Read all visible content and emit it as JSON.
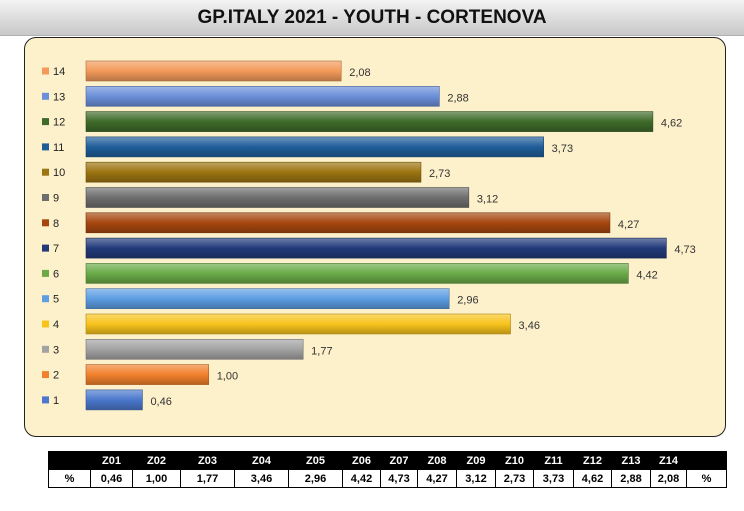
{
  "title": "GP.ITALY 2021 - YOUTH - CORTENOVA",
  "chart_data": {
    "type": "bar",
    "orientation": "horizontal",
    "title": "GP.ITALY 2021 - YOUTH - CORTENOVA",
    "categories": [
      "14",
      "13",
      "12",
      "11",
      "10",
      "9",
      "8",
      "7",
      "6",
      "5",
      "4",
      "3",
      "2",
      "1"
    ],
    "values": [
      2.08,
      2.88,
      4.62,
      3.73,
      2.73,
      3.12,
      4.27,
      4.73,
      4.42,
      2.96,
      3.46,
      1.77,
      1.0,
      0.46
    ],
    "value_labels": [
      "2,08",
      "2,88",
      "4,62",
      "3,73",
      "2,73",
      "3,12",
      "4,27",
      "4,73",
      "4,42",
      "2,96",
      "3,46",
      "1,77",
      "1,00",
      "0,46"
    ],
    "colors": [
      "#f39a5a",
      "#6b8fd9",
      "#3e6b2a",
      "#1f5d99",
      "#9c7411",
      "#6e6e6e",
      "#a6460f",
      "#223a7a",
      "#6aab48",
      "#5d9de2",
      "#f7c31c",
      "#a3a3a3",
      "#f2812d",
      "#4a78cc"
    ],
    "xlim": [
      0,
      5
    ],
    "grid": false,
    "legend": "left"
  },
  "table": {
    "headers": [
      "",
      "Z01",
      "Z02",
      "Z03",
      "Z04",
      "Z05",
      "Z06",
      "Z07",
      "Z08",
      "Z09",
      "Z10",
      "Z11",
      "Z12",
      "Z13",
      "Z14",
      ""
    ],
    "row_label": "%",
    "row_end": "%",
    "values": [
      "0,46",
      "1,00",
      "1,77",
      "3,46",
      "2,96",
      "4,42",
      "4,73",
      "4,27",
      "3,12",
      "2,73",
      "3,73",
      "4,62",
      "2,88",
      "2,08"
    ]
  }
}
